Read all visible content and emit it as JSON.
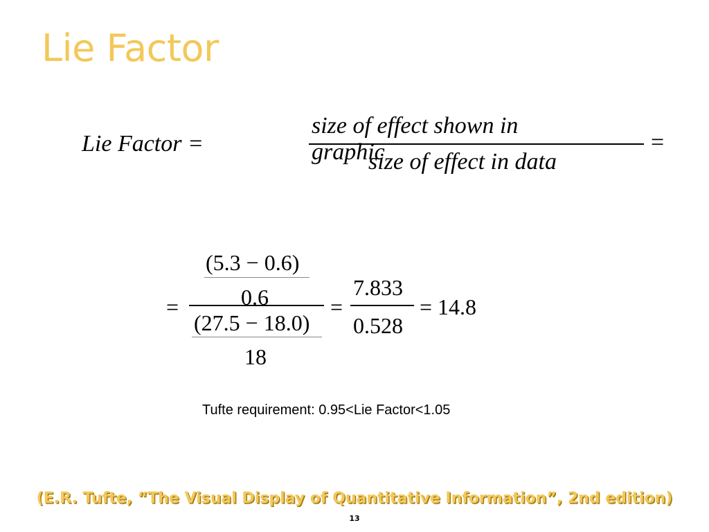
{
  "title": "Lie Factor",
  "formula": {
    "lhs": "Lie  Factor =",
    "numerator": "size of  effect shown in graphic",
    "denominator": "size of  effect in data",
    "equals_right": "="
  },
  "calculation": {
    "equals_left": "=",
    "num_top": "(5.3 − 0.6)",
    "num_bottom": "0.6",
    "den_top": "(27.5 − 18.0)",
    "den_bottom": "18",
    "equals_mid": "=",
    "frac_num": "7.833",
    "frac_den": "0.528",
    "result": "= 14.8"
  },
  "requirement": "Tufte requirement:  0.95<Lie Factor<1.05",
  "citation": "(E.R. Tufte, “The Visual Display of Quantitative Information”, 2nd edition)",
  "page_number": "13"
}
